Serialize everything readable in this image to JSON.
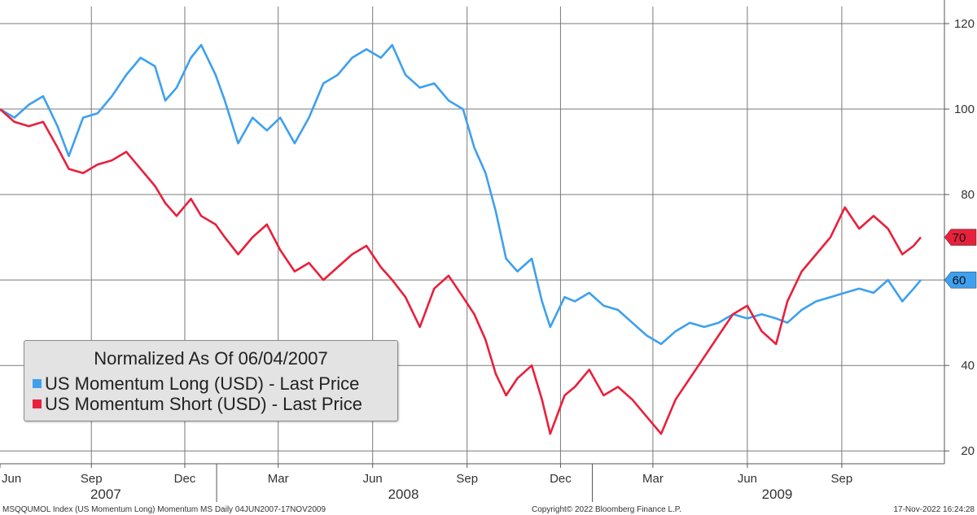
{
  "chart_data": {
    "type": "line",
    "title": "",
    "legend": {
      "title": "Normalized As Of 06/04/2007",
      "placement": "bottom-left"
    },
    "y_axis": {
      "side": "right",
      "ylim": [
        17,
        124
      ],
      "ticks": [
        20,
        40,
        60,
        80,
        100,
        120
      ],
      "tick_labels": [
        "20",
        "40",
        "60",
        "80",
        "100",
        "120"
      ]
    },
    "x_axis": {
      "month_labels": [
        {
          "label": "Jun",
          "x": "2007-06-04"
        },
        {
          "label": "Sep",
          "x": "2007-09-01"
        },
        {
          "label": "Dec",
          "x": "2007-12-01"
        },
        {
          "label": "Mar",
          "x": "2008-03-01"
        },
        {
          "label": "Jun",
          "x": "2008-06-01"
        },
        {
          "label": "Sep",
          "x": "2008-09-01"
        },
        {
          "label": "Dec",
          "x": "2008-12-01"
        },
        {
          "label": "Mar",
          "x": "2009-03-01"
        },
        {
          "label": "Jun",
          "x": "2009-06-01"
        },
        {
          "label": "Sep",
          "x": "2009-09-01"
        }
      ],
      "year_labels": [
        {
          "label": "2007",
          "x": "2007-09-15"
        },
        {
          "label": "2008",
          "x": "2008-07-01"
        },
        {
          "label": "2009",
          "x": "2009-06-30"
        }
      ],
      "year_dividers": [
        "2008-01-01",
        "2009-01-01"
      ],
      "xlim": [
        "2007-06-04",
        "2009-12-10"
      ]
    },
    "grid": true,
    "series": [
      {
        "name": "US Momentum Long (USD) - Last Price",
        "color": "#3ea0ee",
        "last_value": 60,
        "points": [
          [
            "2007-06-04",
            100
          ],
          [
            "2007-06-18",
            98
          ],
          [
            "2007-07-02",
            101
          ],
          [
            "2007-07-16",
            103
          ],
          [
            "2007-07-30",
            96
          ],
          [
            "2007-08-10",
            89
          ],
          [
            "2007-08-24",
            98
          ],
          [
            "2007-09-07",
            99
          ],
          [
            "2007-09-21",
            103
          ],
          [
            "2007-10-05",
            108
          ],
          [
            "2007-10-19",
            112
          ],
          [
            "2007-11-02",
            110
          ],
          [
            "2007-11-12",
            102
          ],
          [
            "2007-11-23",
            105
          ],
          [
            "2007-12-07",
            112
          ],
          [
            "2007-12-17",
            115
          ],
          [
            "2007-12-31",
            108
          ],
          [
            "2008-01-09",
            102
          ],
          [
            "2008-01-22",
            92
          ],
          [
            "2008-02-05",
            98
          ],
          [
            "2008-02-19",
            95
          ],
          [
            "2008-03-03",
            98
          ],
          [
            "2008-03-17",
            92
          ],
          [
            "2008-03-31",
            98
          ],
          [
            "2008-04-14",
            106
          ],
          [
            "2008-04-28",
            108
          ],
          [
            "2008-05-12",
            112
          ],
          [
            "2008-05-26",
            114
          ],
          [
            "2008-06-09",
            112
          ],
          [
            "2008-06-20",
            115
          ],
          [
            "2008-07-03",
            108
          ],
          [
            "2008-07-17",
            105
          ],
          [
            "2008-07-31",
            106
          ],
          [
            "2008-08-14",
            102
          ],
          [
            "2008-08-28",
            100
          ],
          [
            "2008-09-08",
            91
          ],
          [
            "2008-09-19",
            85
          ],
          [
            "2008-09-29",
            76
          ],
          [
            "2008-10-09",
            65
          ],
          [
            "2008-10-20",
            62
          ],
          [
            "2008-11-03",
            65
          ],
          [
            "2008-11-13",
            55
          ],
          [
            "2008-11-21",
            49
          ],
          [
            "2008-12-05",
            56
          ],
          [
            "2008-12-15",
            55
          ],
          [
            "2008-12-29",
            57
          ],
          [
            "2009-01-12",
            54
          ],
          [
            "2009-01-26",
            53
          ],
          [
            "2009-02-09",
            50
          ],
          [
            "2009-02-23",
            47
          ],
          [
            "2009-03-09",
            45
          ],
          [
            "2009-03-23",
            48
          ],
          [
            "2009-04-06",
            50
          ],
          [
            "2009-04-20",
            49
          ],
          [
            "2009-05-04",
            50
          ],
          [
            "2009-05-18",
            52
          ],
          [
            "2009-06-01",
            51
          ],
          [
            "2009-06-15",
            52
          ],
          [
            "2009-06-29",
            51
          ],
          [
            "2009-07-10",
            50
          ],
          [
            "2009-07-24",
            53
          ],
          [
            "2009-08-07",
            55
          ],
          [
            "2009-08-21",
            56
          ],
          [
            "2009-09-04",
            57
          ],
          [
            "2009-09-18",
            58
          ],
          [
            "2009-10-02",
            57
          ],
          [
            "2009-10-16",
            60
          ],
          [
            "2009-10-30",
            55
          ],
          [
            "2009-11-10",
            58
          ],
          [
            "2009-11-17",
            60
          ]
        ]
      },
      {
        "name": "US Momentum Short (USD) - Last Price",
        "color": "#e8203c",
        "last_value": 70,
        "points": [
          [
            "2007-06-04",
            100
          ],
          [
            "2007-06-18",
            97
          ],
          [
            "2007-07-02",
            96
          ],
          [
            "2007-07-16",
            97
          ],
          [
            "2007-07-30",
            91
          ],
          [
            "2007-08-10",
            86
          ],
          [
            "2007-08-24",
            85
          ],
          [
            "2007-09-07",
            87
          ],
          [
            "2007-09-21",
            88
          ],
          [
            "2007-10-05",
            90
          ],
          [
            "2007-10-19",
            86
          ],
          [
            "2007-11-02",
            82
          ],
          [
            "2007-11-12",
            78
          ],
          [
            "2007-11-23",
            75
          ],
          [
            "2007-12-07",
            79
          ],
          [
            "2007-12-17",
            75
          ],
          [
            "2007-12-31",
            73
          ],
          [
            "2008-01-09",
            70
          ],
          [
            "2008-01-22",
            66
          ],
          [
            "2008-02-05",
            70
          ],
          [
            "2008-02-19",
            73
          ],
          [
            "2008-03-03",
            67
          ],
          [
            "2008-03-17",
            62
          ],
          [
            "2008-03-31",
            64
          ],
          [
            "2008-04-14",
            60
          ],
          [
            "2008-04-28",
            63
          ],
          [
            "2008-05-12",
            66
          ],
          [
            "2008-05-26",
            68
          ],
          [
            "2008-06-09",
            63
          ],
          [
            "2008-06-20",
            60
          ],
          [
            "2008-07-03",
            56
          ],
          [
            "2008-07-17",
            49
          ],
          [
            "2008-07-31",
            58
          ],
          [
            "2008-08-14",
            61
          ],
          [
            "2008-08-28",
            56
          ],
          [
            "2008-09-08",
            52
          ],
          [
            "2008-09-19",
            46
          ],
          [
            "2008-09-29",
            38
          ],
          [
            "2008-10-09",
            33
          ],
          [
            "2008-10-20",
            37
          ],
          [
            "2008-11-03",
            40
          ],
          [
            "2008-11-13",
            32
          ],
          [
            "2008-11-21",
            24
          ],
          [
            "2008-12-05",
            33
          ],
          [
            "2008-12-15",
            35
          ],
          [
            "2008-12-29",
            39
          ],
          [
            "2009-01-12",
            33
          ],
          [
            "2009-01-26",
            35
          ],
          [
            "2009-02-09",
            32
          ],
          [
            "2009-02-23",
            28
          ],
          [
            "2009-03-09",
            24
          ],
          [
            "2009-03-23",
            32
          ],
          [
            "2009-04-06",
            37
          ],
          [
            "2009-04-20",
            42
          ],
          [
            "2009-05-04",
            47
          ],
          [
            "2009-05-18",
            52
          ],
          [
            "2009-06-01",
            54
          ],
          [
            "2009-06-15",
            48
          ],
          [
            "2009-06-29",
            45
          ],
          [
            "2009-07-10",
            55
          ],
          [
            "2009-07-24",
            62
          ],
          [
            "2009-08-07",
            66
          ],
          [
            "2009-08-21",
            70
          ],
          [
            "2009-09-04",
            77
          ],
          [
            "2009-09-18",
            72
          ],
          [
            "2009-10-02",
            75
          ],
          [
            "2009-10-16",
            72
          ],
          [
            "2009-10-30",
            66
          ],
          [
            "2009-11-10",
            68
          ],
          [
            "2009-11-17",
            70
          ]
        ]
      }
    ]
  },
  "footer": {
    "left": "MSQQUMOL Index (US Momentum Long) Momentum MS  Daily 04JUN2007-17NOV2009",
    "center": "Copyright© 2022 Bloomberg Finance L.P.",
    "right": "17-Nov-2022 16:24:28"
  }
}
